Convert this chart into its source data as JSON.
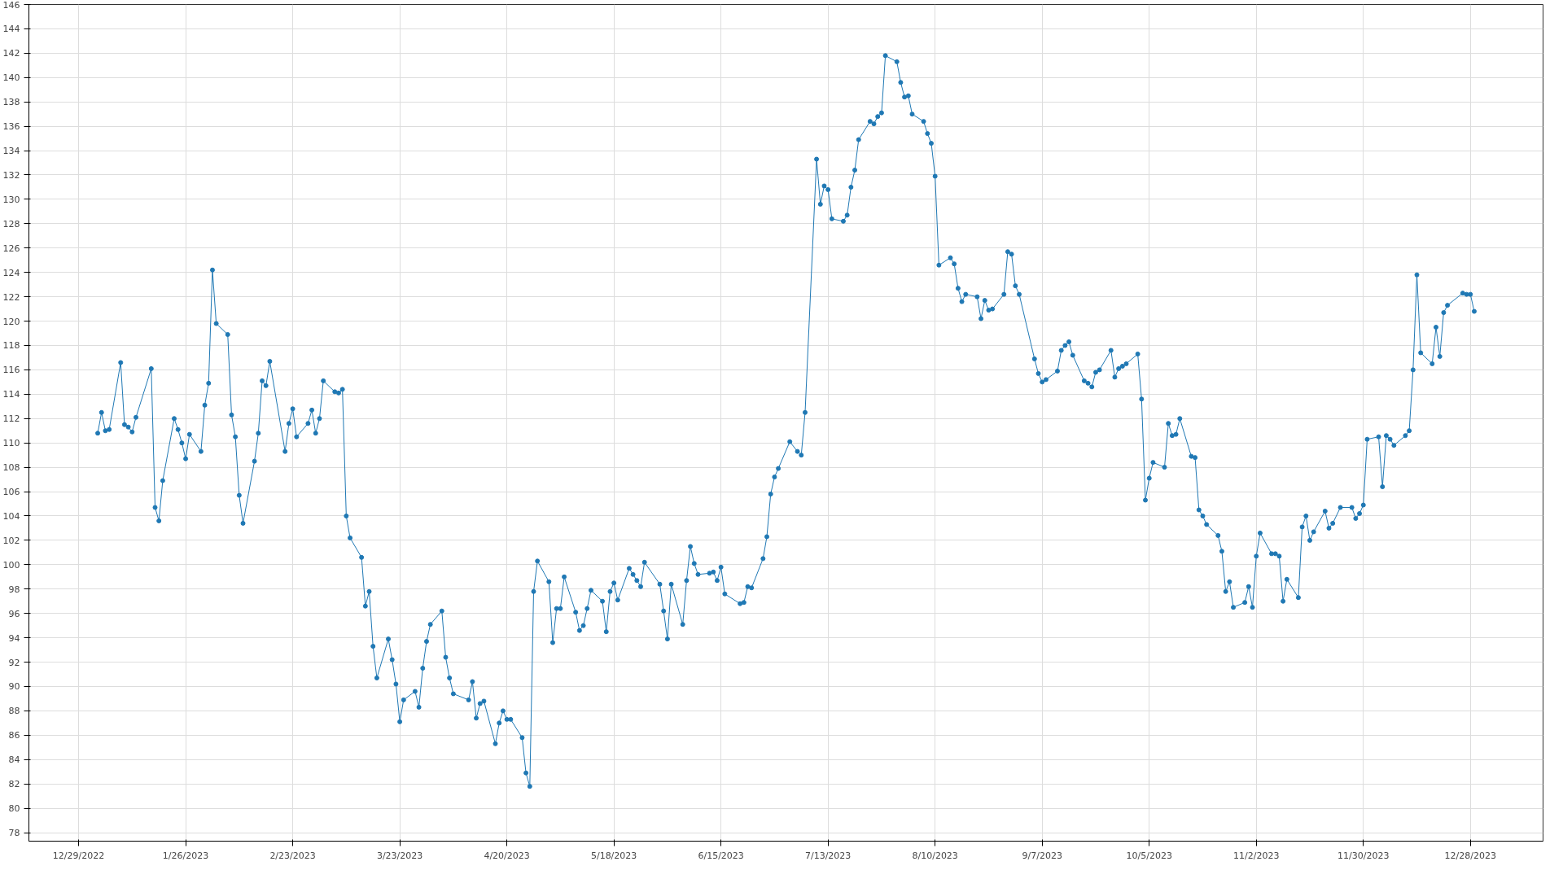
{
  "chart_data": {
    "type": "line",
    "marker": "circle",
    "line_style": "solid",
    "grid": true,
    "xlim": [
      "2022-12-16",
      "2024-01-16"
    ],
    "ylim": [
      77.3,
      146
    ],
    "xticks": [
      {
        "value": "2022-12-29",
        "label": "12/29/2022"
      },
      {
        "value": "2023-01-26",
        "label": "1/26/2023"
      },
      {
        "value": "2023-02-23",
        "label": "2/23/2023"
      },
      {
        "value": "2023-03-23",
        "label": "3/23/2023"
      },
      {
        "value": "2023-04-20",
        "label": "4/20/2023"
      },
      {
        "value": "2023-05-18",
        "label": "5/18/2023"
      },
      {
        "value": "2023-06-15",
        "label": "6/15/2023"
      },
      {
        "value": "2023-07-13",
        "label": "7/13/2023"
      },
      {
        "value": "2023-08-10",
        "label": "8/10/2023"
      },
      {
        "value": "2023-09-07",
        "label": "9/7/2023"
      },
      {
        "value": "2023-10-05",
        "label": "10/5/2023"
      },
      {
        "value": "2023-11-02",
        "label": "11/2/2023"
      },
      {
        "value": "2023-11-30",
        "label": "11/30/2023"
      },
      {
        "value": "2023-12-28",
        "label": "12/28/2023"
      }
    ],
    "yticks": [
      78,
      80,
      82,
      84,
      86,
      88,
      90,
      92,
      94,
      96,
      98,
      100,
      102,
      104,
      106,
      108,
      110,
      112,
      114,
      116,
      118,
      120,
      122,
      124,
      126,
      128,
      130,
      132,
      134,
      136,
      138,
      140,
      142,
      144,
      146
    ],
    "series": [
      {
        "color": "#1f78b4",
        "x": [
          "2023-01-03",
          "2023-01-04",
          "2023-01-05",
          "2023-01-06",
          "2023-01-09",
          "2023-01-10",
          "2023-01-11",
          "2023-01-12",
          "2023-01-13",
          "2023-01-17",
          "2023-01-18",
          "2023-01-19",
          "2023-01-20",
          "2023-01-23",
          "2023-01-24",
          "2023-01-25",
          "2023-01-26",
          "2023-01-27",
          "2023-01-30",
          "2023-01-31",
          "2023-02-01",
          "2023-02-02",
          "2023-02-03",
          "2023-02-06",
          "2023-02-07",
          "2023-02-08",
          "2023-02-09",
          "2023-02-10",
          "2023-02-13",
          "2023-02-14",
          "2023-02-15",
          "2023-02-16",
          "2023-02-17",
          "2023-02-21",
          "2023-02-22",
          "2023-02-23",
          "2023-02-24",
          "2023-02-27",
          "2023-02-28",
          "2023-03-01",
          "2023-03-02",
          "2023-03-03",
          "2023-03-06",
          "2023-03-07",
          "2023-03-08",
          "2023-03-09",
          "2023-03-10",
          "2023-03-13",
          "2023-03-14",
          "2023-03-15",
          "2023-03-16",
          "2023-03-17",
          "2023-03-20",
          "2023-03-21",
          "2023-03-22",
          "2023-03-23",
          "2023-03-24",
          "2023-03-27",
          "2023-03-28",
          "2023-03-29",
          "2023-03-30",
          "2023-03-31",
          "2023-04-03",
          "2023-04-04",
          "2023-04-05",
          "2023-04-06",
          "2023-04-10",
          "2023-04-11",
          "2023-04-12",
          "2023-04-13",
          "2023-04-14",
          "2023-04-17",
          "2023-04-18",
          "2023-04-19",
          "2023-04-20",
          "2023-04-21",
          "2023-04-24",
          "2023-04-25",
          "2023-04-26",
          "2023-04-27",
          "2023-04-28",
          "2023-05-01",
          "2023-05-02",
          "2023-05-03",
          "2023-05-04",
          "2023-05-05",
          "2023-05-08",
          "2023-05-09",
          "2023-05-10",
          "2023-05-11",
          "2023-05-12",
          "2023-05-15",
          "2023-05-16",
          "2023-05-17",
          "2023-05-18",
          "2023-05-19",
          "2023-05-22",
          "2023-05-23",
          "2023-05-24",
          "2023-05-25",
          "2023-05-26",
          "2023-05-30",
          "2023-05-31",
          "2023-06-01",
          "2023-06-02",
          "2023-06-05",
          "2023-06-06",
          "2023-06-07",
          "2023-06-08",
          "2023-06-09",
          "2023-06-12",
          "2023-06-13",
          "2023-06-14",
          "2023-06-15",
          "2023-06-16",
          "2023-06-20",
          "2023-06-21",
          "2023-06-22",
          "2023-06-23",
          "2023-06-26",
          "2023-06-27",
          "2023-06-28",
          "2023-06-29",
          "2023-06-30",
          "2023-07-03",
          "2023-07-05",
          "2023-07-06",
          "2023-07-07",
          "2023-07-10",
          "2023-07-11",
          "2023-07-12",
          "2023-07-13",
          "2023-07-14",
          "2023-07-17",
          "2023-07-18",
          "2023-07-19",
          "2023-07-20",
          "2023-07-21",
          "2023-07-24",
          "2023-07-25",
          "2023-07-26",
          "2023-07-27",
          "2023-07-28",
          "2023-07-31",
          "2023-08-01",
          "2023-08-02",
          "2023-08-03",
          "2023-08-04",
          "2023-08-07",
          "2023-08-08",
          "2023-08-09",
          "2023-08-10",
          "2023-08-11",
          "2023-08-14",
          "2023-08-15",
          "2023-08-16",
          "2023-08-17",
          "2023-08-18",
          "2023-08-21",
          "2023-08-22",
          "2023-08-23",
          "2023-08-24",
          "2023-08-25",
          "2023-08-28",
          "2023-08-29",
          "2023-08-30",
          "2023-08-31",
          "2023-09-01",
          "2023-09-05",
          "2023-09-06",
          "2023-09-07",
          "2023-09-08",
          "2023-09-11",
          "2023-09-12",
          "2023-09-13",
          "2023-09-14",
          "2023-09-15",
          "2023-09-18",
          "2023-09-19",
          "2023-09-20",
          "2023-09-21",
          "2023-09-22",
          "2023-09-25",
          "2023-09-26",
          "2023-09-27",
          "2023-09-28",
          "2023-09-29",
          "2023-10-02",
          "2023-10-03",
          "2023-10-04",
          "2023-10-05",
          "2023-10-06",
          "2023-10-09",
          "2023-10-10",
          "2023-10-11",
          "2023-10-12",
          "2023-10-13",
          "2023-10-16",
          "2023-10-17",
          "2023-10-18",
          "2023-10-19",
          "2023-10-20",
          "2023-10-23",
          "2023-10-24",
          "2023-10-25",
          "2023-10-26",
          "2023-10-27",
          "2023-10-30",
          "2023-10-31",
          "2023-11-01",
          "2023-11-02",
          "2023-11-03",
          "2023-11-06",
          "2023-11-07",
          "2023-11-08",
          "2023-11-09",
          "2023-11-10",
          "2023-11-13",
          "2023-11-14",
          "2023-11-15",
          "2023-11-16",
          "2023-11-17",
          "2023-11-20",
          "2023-11-21",
          "2023-11-22",
          "2023-11-24",
          "2023-11-27",
          "2023-11-28",
          "2023-11-29",
          "2023-11-30",
          "2023-12-01",
          "2023-12-04",
          "2023-12-05",
          "2023-12-06",
          "2023-12-07",
          "2023-12-08",
          "2023-12-11",
          "2023-12-12",
          "2023-12-13",
          "2023-12-14",
          "2023-12-15",
          "2023-12-18",
          "2023-12-19",
          "2023-12-20",
          "2023-12-21",
          "2023-12-22",
          "2023-12-26",
          "2023-12-27",
          "2023-12-28",
          "2023-12-29"
        ],
        "values": [
          110.8,
          112.5,
          111.0,
          111.1,
          116.6,
          111.5,
          111.3,
          110.9,
          112.1,
          116.1,
          104.7,
          103.6,
          106.9,
          112.0,
          111.1,
          110.0,
          108.7,
          110.7,
          109.3,
          113.1,
          114.9,
          124.2,
          119.8,
          118.9,
          112.3,
          110.5,
          105.7,
          103.4,
          108.5,
          110.8,
          115.1,
          114.7,
          116.7,
          109.3,
          111.6,
          112.8,
          110.5,
          111.6,
          112.7,
          110.8,
          112.0,
          115.1,
          114.2,
          114.1,
          114.4,
          104.0,
          102.2,
          100.6,
          96.6,
          97.8,
          93.3,
          90.7,
          93.9,
          92.2,
          90.2,
          87.1,
          88.9,
          89.6,
          88.3,
          91.5,
          93.7,
          95.1,
          96.2,
          92.4,
          90.7,
          89.4,
          88.9,
          90.4,
          87.4,
          88.6,
          88.8,
          85.3,
          87.0,
          88.0,
          87.3,
          87.3,
          85.8,
          82.9,
          81.8,
          97.8,
          100.3,
          98.6,
          93.6,
          96.4,
          96.4,
          99.0,
          96.1,
          94.6,
          95.0,
          96.4,
          97.9,
          97.0,
          94.5,
          97.8,
          98.5,
          97.1,
          99.7,
          99.2,
          98.7,
          98.2,
          100.2,
          98.4,
          96.2,
          93.9,
          98.4,
          95.1,
          98.7,
          101.5,
          100.1,
          99.2,
          99.3,
          99.4,
          98.7,
          99.8,
          97.6,
          96.8,
          96.9,
          98.2,
          98.1,
          100.5,
          102.3,
          105.8,
          107.2,
          107.9,
          110.1,
          109.3,
          109.0,
          112.5,
          133.3,
          129.6,
          131.1,
          130.8,
          128.4,
          128.2,
          128.7,
          131.0,
          132.4,
          134.9,
          136.4,
          136.2,
          136.8,
          137.1,
          141.8,
          141.3,
          139.6,
          138.4,
          138.5,
          137.0,
          136.4,
          135.4,
          134.6,
          131.9,
          124.6,
          125.2,
          124.7,
          122.7,
          121.6,
          122.2,
          122.0,
          120.2,
          121.7,
          120.9,
          121.0,
          122.2,
          125.7,
          125.5,
          122.9,
          122.2,
          116.9,
          115.7,
          115.0,
          115.2,
          115.9,
          117.6,
          118.0,
          118.3,
          117.2,
          115.1,
          114.9,
          114.6,
          115.8,
          116.0,
          117.6,
          115.4,
          116.1,
          116.3,
          116.5,
          117.3,
          113.6,
          105.3,
          107.1,
          108.4,
          108.0,
          111.6,
          110.6,
          110.7,
          112.0,
          108.9,
          108.8,
          104.5,
          104.0,
          103.3,
          102.4,
          101.1,
          97.8,
          98.6,
          96.5,
          96.9,
          98.2,
          96.5,
          100.7,
          102.6,
          100.9,
          100.9,
          100.7,
          97.0,
          98.8,
          97.3,
          103.1,
          104.0,
          102.0,
          102.7,
          104.4,
          103.0,
          103.4,
          104.7,
          104.7,
          103.8,
          104.2,
          104.9,
          110.3,
          110.5,
          106.4,
          110.6,
          110.3,
          109.8,
          110.6,
          111.0,
          116.0,
          123.8,
          117.4,
          116.5,
          119.5,
          117.1,
          120.7,
          121.3,
          122.3,
          122.2,
          122.2,
          120.8
        ]
      }
    ]
  }
}
